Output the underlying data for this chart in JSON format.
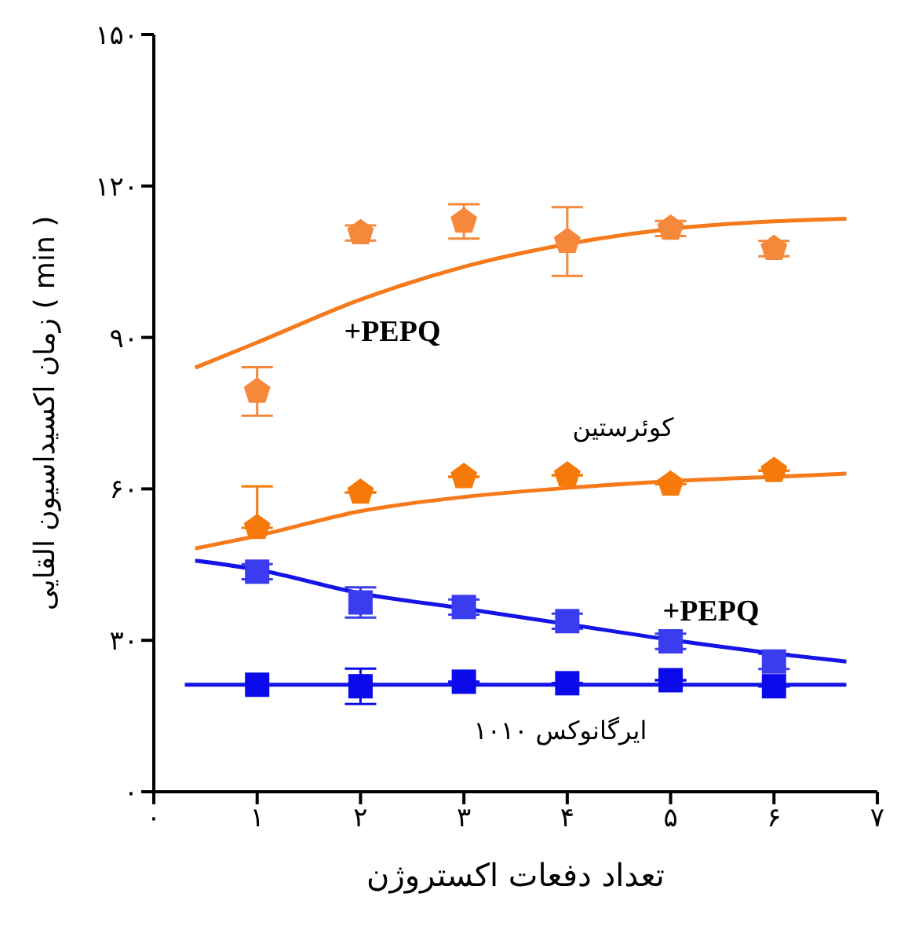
{
  "chart_data": {
    "type": "scatter",
    "xlabel": "تعداد دفعات اکستروژن",
    "ylabel": "زمان اکسیداسیون القایی ( min )",
    "xlim": [
      0,
      7
    ],
    "xticks": [
      {
        "value": 0,
        "label": "۰"
      },
      {
        "value": 1,
        "label": "۱"
      },
      {
        "value": 2,
        "label": "۲"
      },
      {
        "value": 3,
        "label": "۳"
      },
      {
        "value": 4,
        "label": "۴"
      },
      {
        "value": 5,
        "label": "۵"
      },
      {
        "value": 6,
        "label": "۶"
      },
      {
        "value": 7,
        "label": "۷"
      }
    ],
    "ylim": [
      0,
      150
    ],
    "yticks": [
      {
        "value": 0,
        "label": "۰"
      },
      {
        "value": 30,
        "label": "۳۰"
      },
      {
        "value": 60,
        "label": "۶۰"
      },
      {
        "value": 90,
        "label": "۹۰"
      },
      {
        "value": 120,
        "label": "۱۲۰"
      },
      {
        "value": 150,
        "label": "۱۵۰"
      }
    ],
    "grid": false,
    "legend": false,
    "series": [
      {
        "color": "#f5883a",
        "x": [
          1,
          2,
          3,
          4,
          5,
          6
        ],
        "values": [
          79.3,
          110.7,
          113,
          109,
          111.6,
          107.6
        ],
        "errors": [
          4.8,
          1.5,
          3.4,
          6.8,
          1.5,
          1.5
        ]
      },
      {
        "type": "line",
        "marker": "none",
        "color": "#f57a1c",
        "x": [
          0.4,
          1,
          2,
          3,
          4,
          5,
          6,
          6.7
        ],
        "values": [
          84,
          89,
          97.5,
          104,
          108.5,
          111.5,
          113,
          113.5
        ]
      },
      {
        "color": "#f57a0a",
        "x": [
          1,
          2,
          3,
          4,
          5,
          6
        ],
        "values": [
          52.3,
          59.3,
          62.4,
          62.7,
          60.9,
          63.6
        ],
        "errors": [
          [
            52.3,
            60.5
          ],
          null,
          null,
          null,
          null,
          null
        ]
      },
      {
        "type": "line",
        "marker": "none",
        "color": "#f57a1c",
        "x": [
          0.4,
          1,
          2,
          3,
          4,
          5,
          6,
          6.7
        ],
        "values": [
          48.2,
          50.7,
          55.6,
          58.4,
          60.2,
          61.5,
          62.4,
          63
        ]
      },
      {
        "marker": "square",
        "color": "#3b3bf0",
        "x": [
          1,
          2,
          3,
          4,
          5,
          6
        ],
        "values": [
          43.6,
          37.5,
          36.6,
          33.8,
          29.8,
          25.8
        ],
        "errors": [
          1.5,
          3,
          1.5,
          1.5,
          1.5,
          1.5
        ]
      },
      {
        "type": "line",
        "marker": "none",
        "color": "#1414e6",
        "x": [
          0.4,
          1,
          2,
          3,
          4,
          5,
          6,
          6.7
        ],
        "values": [
          45.8,
          44,
          39.3,
          36.3,
          33.2,
          30.1,
          27.4,
          25.8
        ]
      },
      {
        "marker": "square",
        "color": "#0a0aeb",
        "x": [
          1,
          2,
          3,
          4,
          5,
          6
        ],
        "values": [
          21.2,
          20.9,
          21.8,
          21.5,
          22.1,
          20.9
        ],
        "errors": [
          null,
          3.5,
          null,
          null,
          null,
          null
        ]
      },
      {
        "type": "line",
        "marker": "none",
        "color": "#1414e6",
        "x": [
          0.3,
          6.7
        ],
        "values": [
          21.2,
          21.2
        ]
      }
    ],
    "annotations": [
      "+PEPQ",
      "کوئرستین",
      "+PEPQ",
      "ایرگانوکس ۱۰۱۰"
    ]
  }
}
